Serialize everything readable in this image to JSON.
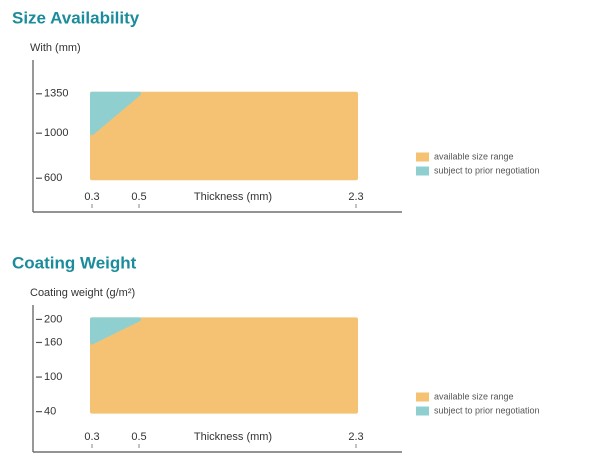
{
  "chart_data": [
    {
      "type": "region",
      "title": "Size Availability",
      "y_label": "With (mm)",
      "x_label": "Thickness (mm)",
      "xlim": [
        0,
        2.6
      ],
      "xticks": [
        0.3,
        0.5,
        2.3
      ],
      "ylim": [
        300,
        1650
      ],
      "yticks": [
        600,
        1000,
        1350
      ],
      "legend": "right",
      "series": [
        {
          "name": "available size range",
          "color": "#f5c273",
          "x": [
            0.3,
            2.3,
            2.3,
            0.3
          ],
          "values": [
            600,
            600,
            1350,
            1350
          ]
        },
        {
          "name": "subject to prior negotiation",
          "color": "#8fcfd0",
          "x": [
            0.3,
            0.3,
            0.5
          ],
          "values": [
            1000,
            1350,
            1350
          ]
        }
      ]
    },
    {
      "type": "region",
      "title": "Coating Weight",
      "y_label": "Coating weight (g/m²)",
      "x_label": "Thickness (mm)",
      "xlim": [
        0,
        2.6
      ],
      "xticks": [
        0.3,
        0.5,
        2.3
      ],
      "ylim": [
        -30,
        225
      ],
      "yticks": [
        40,
        100,
        160,
        200
      ],
      "legend": "right",
      "series": [
        {
          "name": "available size range",
          "color": "#f5c273",
          "x": [
            0.3,
            2.3,
            2.3,
            0.3
          ],
          "values": [
            40,
            40,
            200,
            200
          ]
        },
        {
          "name": "subject to prior negotiation",
          "color": "#8fcfd0",
          "x": [
            0.3,
            0.3,
            0.5
          ],
          "values": [
            160,
            200,
            200
          ]
        }
      ]
    }
  ]
}
